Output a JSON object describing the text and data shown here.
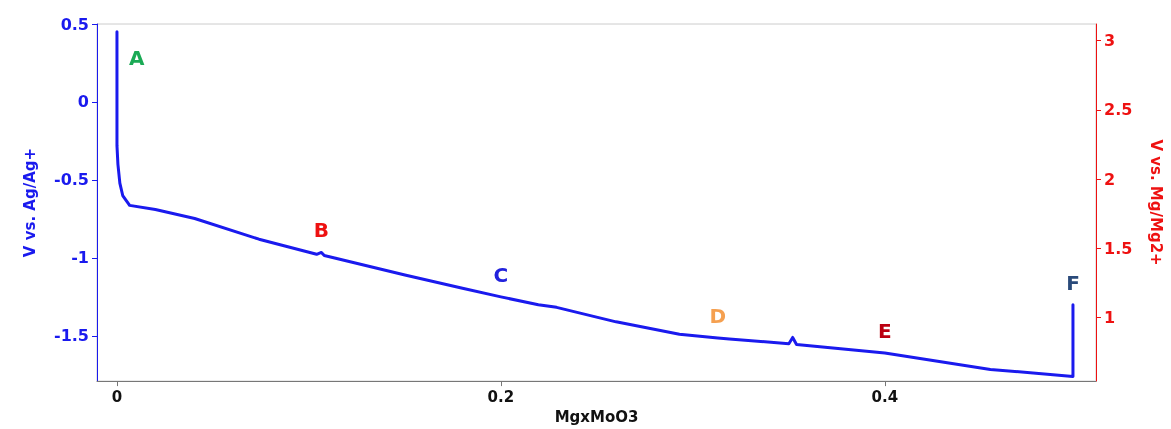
{
  "chart_data": {
    "type": "line",
    "xlabel": "MgxMoO3",
    "ylabel": "V vs. Ag/Ag+",
    "y2label": "V vs. Mg/Mg2+",
    "xlim": [
      -0.0104,
      0.51
    ],
    "xticks": [
      0,
      0.2,
      0.4
    ],
    "ylim": [
      -1.79,
      0.5
    ],
    "yticks": [
      -1.5,
      -1,
      -0.5,
      0,
      0.5
    ],
    "y2lim": [
      0.54,
      3.12
    ],
    "y2ticks": [
      1,
      1.5,
      2,
      2.5,
      3
    ],
    "grid": false,
    "marker": "none",
    "line_style": "solid",
    "series": [
      {
        "color": "#1a1aee",
        "x": [
          0,
          0,
          0.0005,
          0.0015,
          0.003,
          0.0066,
          0.02,
          0.0405,
          0.074,
          0.104,
          0.1065,
          0.108,
          0.15,
          0.18,
          0.2,
          0.2195,
          0.229,
          0.26,
          0.293,
          0.313,
          0.319,
          0.35,
          0.352,
          0.354,
          0.4,
          0.455,
          0.498,
          0.498
        ],
        "values": [
          0.45,
          -0.28,
          -0.4,
          -0.52,
          -0.6,
          -0.663,
          -0.69,
          -0.747,
          -0.88,
          -0.977,
          -0.965,
          -0.985,
          -1.11,
          -1.195,
          -1.25,
          -1.3,
          -1.317,
          -1.41,
          -1.49,
          -1.513,
          -1.52,
          -1.55,
          -1.51,
          -1.555,
          -1.61,
          -1.715,
          -1.76,
          -1.3
        ]
      }
    ],
    "annotations": [
      {
        "text": "A",
        "x": 0,
        "y": 0.45
      },
      {
        "text": "B",
        "x": 0.1065,
        "y": -0.965
      },
      {
        "text": "C",
        "x": 0.2,
        "y": -1.25
      },
      {
        "text": "D",
        "x": 0.313,
        "y": -1.513
      },
      {
        "text": "E",
        "x": 0.4,
        "y": -1.61
      },
      {
        "text": "F",
        "x": 0.498,
        "y": -1.3
      }
    ]
  }
}
